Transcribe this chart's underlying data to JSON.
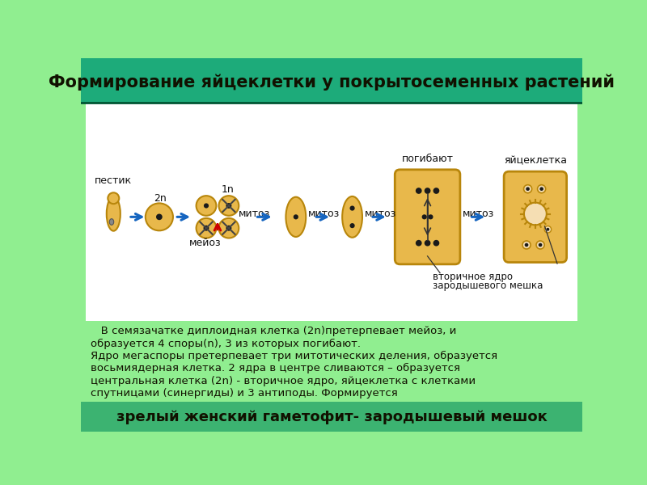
{
  "title": "Формирование яйцеклетки у покрытосеменных растений",
  "title_bg": "#1dab7a",
  "diagram_bg": "#ffffff",
  "middle_bg": "#90ee90",
  "bottom_bg": "#3cb371",
  "bottom_text": "зрелый женский гаметофит- зародышевый мешок",
  "body_text_line1": "   В семязачатке диплоидная клетка (2n)претерпевает мейоз, и",
  "body_text_line2": "образуется 4 споры(n), 3 из которых погибают.",
  "body_text_line3": "Ядро мегаспоры претерпевает три митотических деления, образуется",
  "body_text_line4": "восьмиядерная клетка. 2 ядра в центре сливаются – образуется",
  "body_text_line5": "центральная клетка (2n) - вторичное ядро, яйцеклетка с клетками",
  "body_text_line6": "спутницами (синергиды) и 3 антиподы. Формируется",
  "label_pestik": "пестик",
  "label_2n": "2n",
  "label_1n": "1n",
  "label_meioz": "мейоз",
  "label_mitoz": "митоз",
  "label_pogibayut": "погибают",
  "label_yaycekletka": "яйцеклетка",
  "label_vtorichnoe": "вторичное ядро",
  "label_zarodysh": "зародышевого мешка",
  "cell_color": "#E8B84B",
  "cell_color_light": "#F5DEB3",
  "cell_edge": "#B8860B",
  "arrow_color": "#1565C0",
  "red_arrow_color": "#CC0000"
}
